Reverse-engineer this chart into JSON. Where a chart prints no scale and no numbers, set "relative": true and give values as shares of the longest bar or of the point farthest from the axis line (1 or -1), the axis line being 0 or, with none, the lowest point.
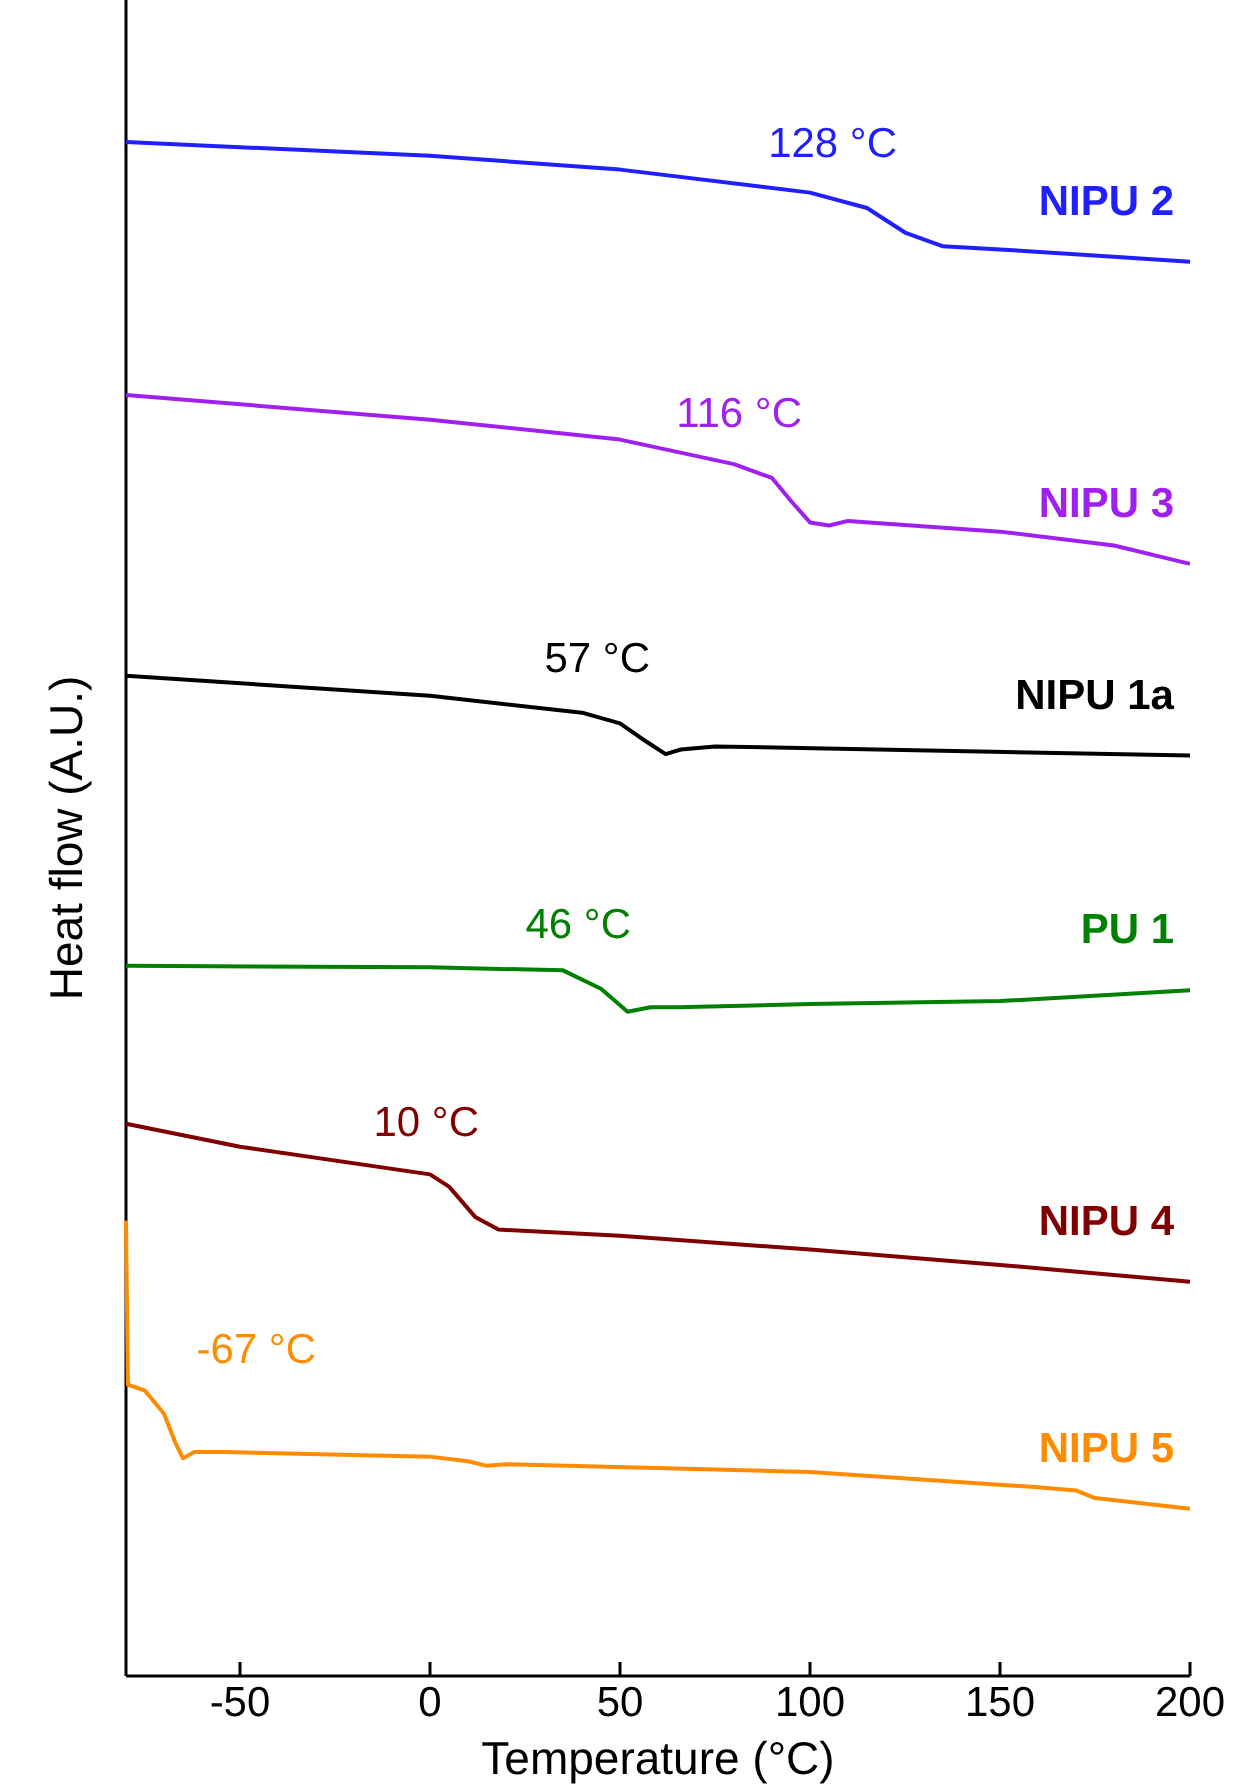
{
  "chart_data": {
    "type": "line",
    "relative": true,
    "xlabel": "Temperature (°C)",
    "ylabel": "Heat flow (A.U.)",
    "xlim": [
      -80,
      200
    ],
    "xticks": [
      -50,
      0,
      50,
      100,
      150,
      200
    ],
    "grid": false,
    "marker": "none",
    "line_style": "solid",
    "series": [
      {
        "name": "NIPU 2",
        "color": "#1f1fff",
        "x": [
          -80,
          0,
          50,
          100,
          115,
          125,
          135,
          150,
          200
        ],
        "values": [
          1.0,
          0.991,
          0.982,
          0.967,
          0.957,
          0.941,
          0.932,
          0.93,
          0.922
        ]
      },
      {
        "name": "NIPU 3",
        "color": "#a020f0",
        "x": [
          -80,
          0,
          50,
          80,
          90,
          95,
          100,
          105,
          110,
          150,
          180,
          200
        ],
        "values": [
          0.835,
          0.819,
          0.806,
          0.79,
          0.781,
          0.766,
          0.752,
          0.75,
          0.753,
          0.746,
          0.737,
          0.725
        ]
      },
      {
        "name": "NIPU 1a",
        "color": "#000000",
        "x": [
          -80,
          0,
          40,
          50,
          57,
          62,
          66,
          75,
          200
        ],
        "values": [
          0.652,
          0.639,
          0.628,
          0.621,
          0.609,
          0.601,
          0.604,
          0.606,
          0.6
        ]
      },
      {
        "name": "PU 1",
        "color": "#008000",
        "x": [
          -80,
          0,
          35,
          45,
          52,
          58,
          65,
          100,
          150,
          200
        ],
        "values": [
          0.463,
          0.462,
          0.46,
          0.448,
          0.433,
          0.436,
          0.436,
          0.438,
          0.44,
          0.447
        ]
      },
      {
        "name": "NIPU 4",
        "color": "#800000",
        "x": [
          -80,
          -50,
          0,
          5,
          12,
          18,
          50,
          100,
          150,
          200
        ],
        "values": [
          0.36,
          0.345,
          0.327,
          0.319,
          0.299,
          0.291,
          0.287,
          0.278,
          0.268,
          0.257
        ]
      },
      {
        "name": "NIPU 5",
        "color": "#ff8c00",
        "x": [
          -80,
          -79.5,
          -75,
          -70,
          -67,
          -65,
          -62,
          -55,
          0,
          10,
          15,
          20,
          100,
          160,
          170,
          175,
          200
        ],
        "values": [
          0.297,
          0.19,
          0.186,
          0.171,
          0.152,
          0.142,
          0.146,
          0.146,
          0.143,
          0.14,
          0.137,
          0.138,
          0.133,
          0.123,
          0.121,
          0.116,
          0.109
        ]
      }
    ],
    "annotations": [
      "128 °C",
      "116 °C",
      "57 °C",
      "46 °C",
      "10 °C",
      "-67 °C"
    ]
  }
}
